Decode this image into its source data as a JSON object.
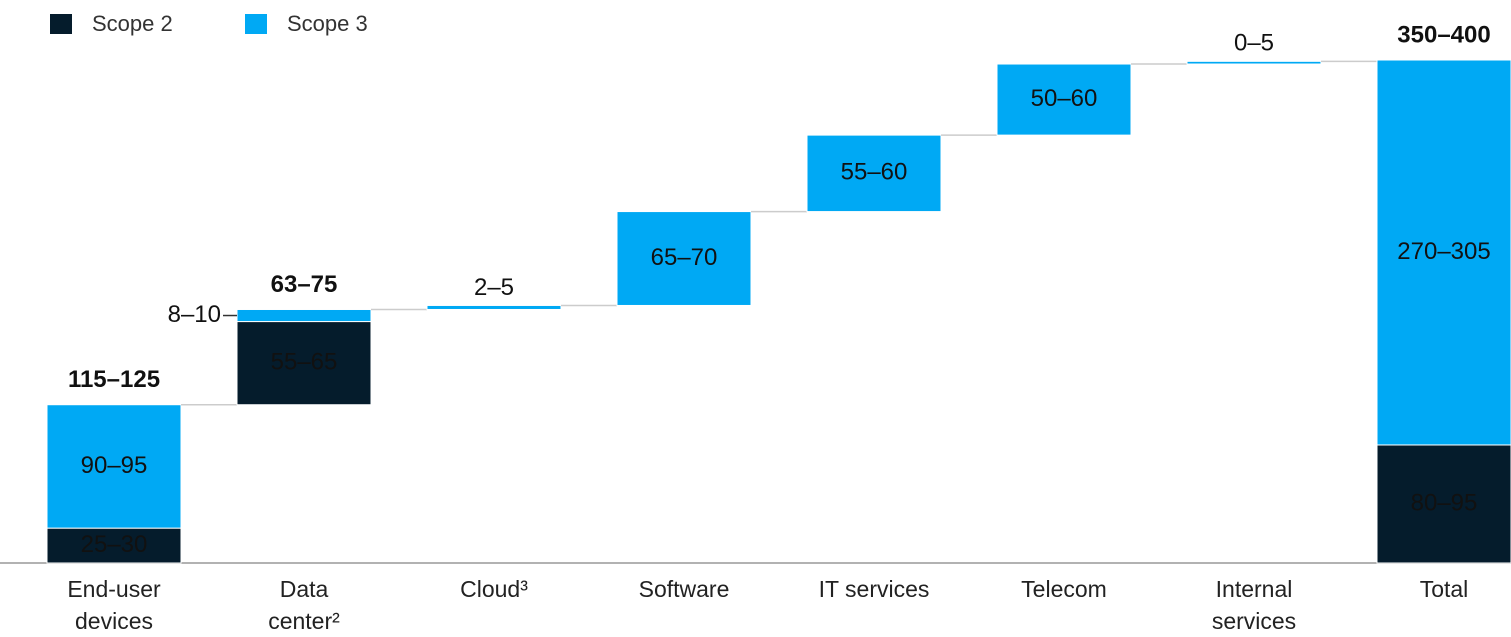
{
  "chart_data": {
    "type": "waterfall",
    "categories": [
      "End-user devices",
      "Data center²",
      "Cloud³",
      "Software",
      "IT services",
      "Telecom",
      "Internal services",
      "Total"
    ],
    "is_total": [
      false,
      false,
      false,
      false,
      false,
      false,
      false,
      true
    ],
    "series": [
      {
        "name": "Scope 2",
        "color": "#051c2c",
        "values": [
          26,
          62,
          null,
          null,
          null,
          null,
          null,
          88
        ],
        "value_labels": [
          "25–30",
          "55–65",
          null,
          null,
          null,
          null,
          null,
          "80–95"
        ]
      },
      {
        "name": "Scope 3",
        "color": "#00a9f4",
        "values": [
          92,
          9,
          3,
          70,
          57,
          53,
          2,
          287
        ],
        "value_labels": [
          "90–95",
          "8–10",
          "2–5",
          "65–70",
          "55–60",
          "50–60",
          "0–5",
          "270–305"
        ]
      }
    ],
    "subtotal_labels": [
      "115–125",
      "63–75",
      null,
      null,
      null,
      null,
      null,
      "350–400"
    ]
  }
}
